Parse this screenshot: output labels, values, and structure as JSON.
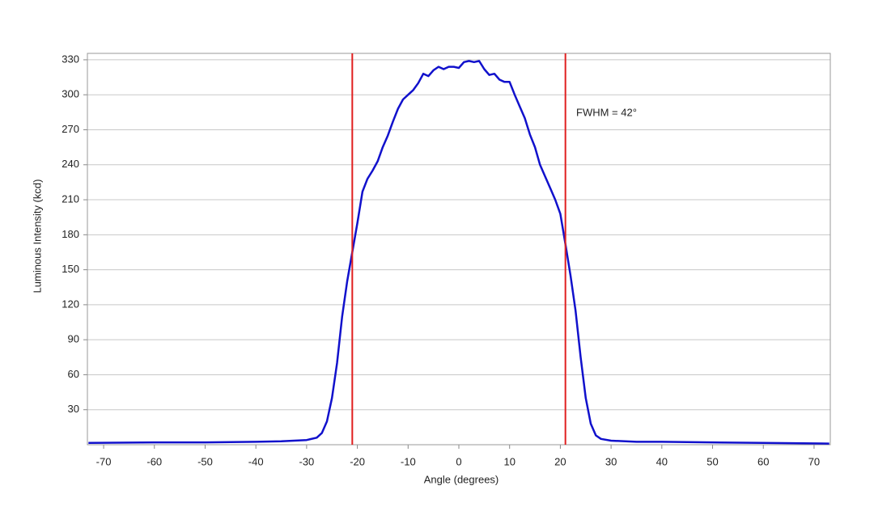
{
  "chart_data": {
    "type": "line",
    "x_label": "Angle (degrees)",
    "y_label": "Luminous Intensity (kcd)",
    "annotation": "FWHM = 42°",
    "x": [
      -73,
      -60,
      -50,
      -40,
      -35,
      -30,
      -28,
      -27,
      -26,
      -25,
      -24,
      -23,
      -22,
      -21,
      -20,
      -19,
      -18,
      -17,
      -16,
      -15,
      -14,
      -13,
      -12,
      -11,
      -10,
      -9,
      -8,
      -7,
      -6,
      -5,
      -4,
      -3,
      -2,
      -1,
      0,
      1,
      2,
      3,
      4,
      5,
      6,
      7,
      8,
      9,
      10,
      11,
      12,
      13,
      14,
      15,
      16,
      17,
      18,
      19,
      20,
      21,
      22,
      23,
      24,
      25,
      26,
      27,
      28,
      30,
      35,
      40,
      50,
      60,
      73
    ],
    "series": [
      {
        "color": "#1111cc",
        "values": [
          1.5,
          2,
          2,
          2.5,
          3,
          4,
          6,
          10,
          20,
          40,
          70,
          110,
          140,
          165,
          190,
          217,
          228,
          235,
          243,
          255,
          265,
          277,
          288,
          296,
          300,
          304,
          310,
          318,
          316,
          321,
          324,
          322,
          324,
          324,
          323,
          328,
          329,
          328,
          329,
          322,
          317,
          318,
          313,
          311,
          311,
          300,
          290,
          280,
          266,
          255,
          240,
          230,
          220,
          210,
          198,
          172,
          145,
          115,
          75,
          40,
          18,
          8,
          5,
          3.5,
          2.5,
          2.5,
          2,
          1.5,
          1
        ]
      }
    ],
    "vlines": [
      -21,
      21
    ],
    "vline_color": "#e02020",
    "xlim": [
      -73.2,
      73.2
    ],
    "ylim": [
      0,
      335.5
    ],
    "xticks": [
      -70,
      -60,
      -50,
      -40,
      -30,
      -20,
      -10,
      0,
      10,
      20,
      30,
      40,
      50,
      60,
      70
    ],
    "yticks": [
      30,
      60,
      90,
      120,
      150,
      180,
      210,
      240,
      270,
      300,
      330
    ],
    "grid": true
  }
}
